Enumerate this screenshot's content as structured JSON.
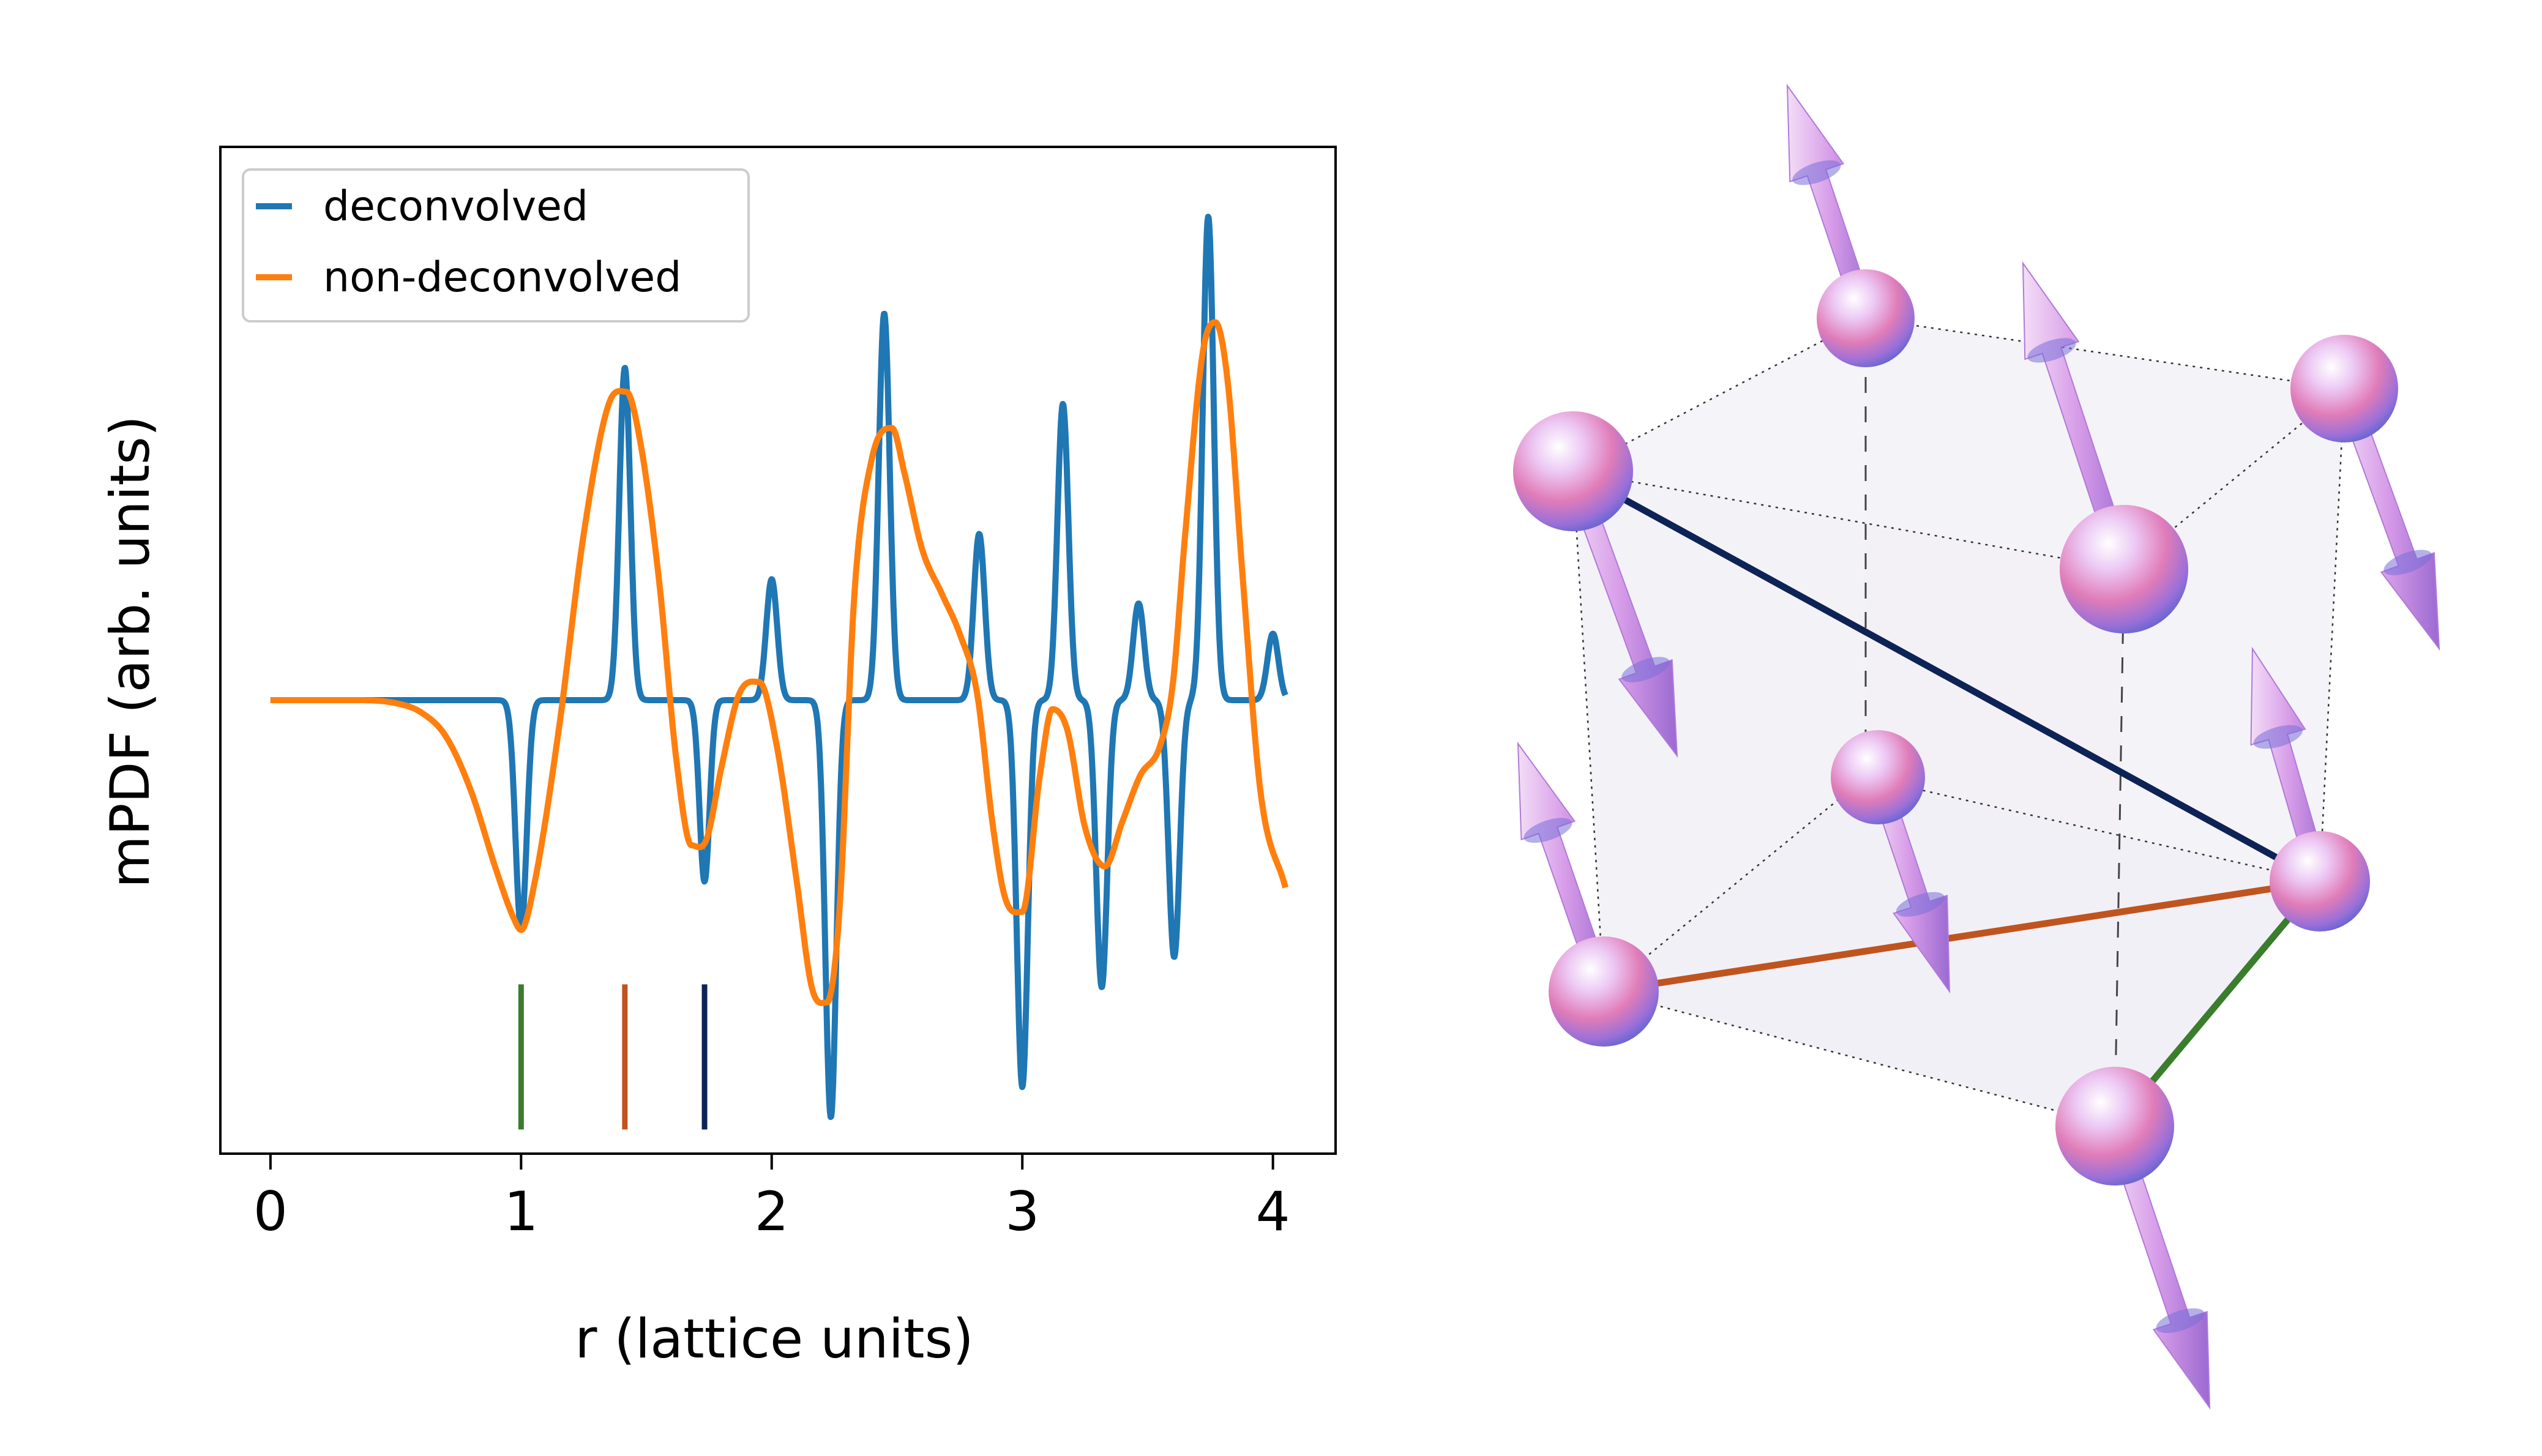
{
  "chart_data": {
    "type": "line",
    "xlabel": "r (lattice units)",
    "ylabel": "mPDF (arb. units)",
    "xlim": [
      -0.2,
      4.25
    ],
    "ylim": [
      -1.5,
      1.83
    ],
    "xticks": [
      0,
      1,
      2,
      3,
      4
    ],
    "xtick_labels": [
      "0",
      "1",
      "2",
      "3",
      "4"
    ],
    "yticks_shown": false,
    "legend_position": "top-left",
    "series": [
      {
        "name": "deconvolved",
        "color": "#1f77b4",
        "peaks": [
          {
            "r": 1.0,
            "a": -0.76,
            "w": 0.022
          },
          {
            "r": 1.414,
            "a": 1.1,
            "w": 0.022
          },
          {
            "r": 1.732,
            "a": -0.6,
            "w": 0.02
          },
          {
            "r": 2.0,
            "a": 0.4,
            "w": 0.022
          },
          {
            "r": 2.236,
            "a": -1.38,
            "w": 0.022
          },
          {
            "r": 2.449,
            "a": 1.28,
            "w": 0.022
          },
          {
            "r": 2.828,
            "a": 0.55,
            "w": 0.022
          },
          {
            "r": 3.0,
            "a": -1.28,
            "w": 0.022
          },
          {
            "r": 3.162,
            "a": 0.98,
            "w": 0.022
          },
          {
            "r": 3.317,
            "a": -0.95,
            "w": 0.022
          },
          {
            "r": 3.464,
            "a": 0.32,
            "w": 0.022
          },
          {
            "r": 3.606,
            "a": -0.85,
            "w": 0.022
          },
          {
            "r": 3.742,
            "a": 1.6,
            "w": 0.022
          },
          {
            "r": 4.0,
            "a": 0.22,
            "w": 0.022
          }
        ]
      },
      {
        "name": "non-deconvolved",
        "color": "#ff7f0e",
        "x": [
          0,
          0.3,
          0.5,
          0.6,
          0.7,
          0.8,
          0.9,
          0.97,
          1.0,
          1.05,
          1.15,
          1.25,
          1.35,
          1.42,
          1.47,
          1.55,
          1.62,
          1.68,
          1.74,
          1.8,
          1.87,
          1.95,
          2.02,
          2.1,
          2.16,
          2.22,
          2.27,
          2.33,
          2.4,
          2.48,
          2.53,
          2.6,
          2.68,
          2.75,
          2.82,
          2.88,
          2.93,
          3.0,
          3.07,
          3.12,
          3.18,
          3.25,
          3.33,
          3.4,
          3.47,
          3.55,
          3.6,
          3.65,
          3.72,
          3.77,
          3.82,
          3.88,
          3.95,
          4.05
        ],
        "y": [
          0,
          0,
          -0.01,
          -0.04,
          -0.12,
          -0.3,
          -0.56,
          -0.72,
          -0.76,
          -0.62,
          -0.1,
          0.55,
          0.98,
          1.02,
          0.88,
          0.4,
          -0.2,
          -0.48,
          -0.46,
          -0.22,
          0.02,
          0.06,
          -0.15,
          -0.6,
          -0.95,
          -1.0,
          -0.7,
          0.35,
          0.8,
          0.9,
          0.75,
          0.5,
          0.35,
          0.22,
          0.02,
          -0.4,
          -0.65,
          -0.7,
          -0.25,
          -0.03,
          -0.1,
          -0.42,
          -0.55,
          -0.4,
          -0.25,
          -0.15,
          0.05,
          0.55,
          1.15,
          1.25,
          1.05,
          0.4,
          -0.3,
          -0.62
        ]
      }
    ],
    "reference_markers": [
      {
        "r": 1.0,
        "color": "#3a7d2c"
      },
      {
        "r": 1.414,
        "color": "#c0541f"
      },
      {
        "r": 1.732,
        "color": "#0d2356"
      }
    ],
    "marker_span": [
      -1.42,
      -0.94
    ]
  },
  "diagram": {
    "sphere_colors": [
      "#ffffff",
      "#d8a8f0",
      "#e06aa8",
      "#6a6ad8"
    ],
    "arrow_color": "#d49be8",
    "bond_colors": {
      "third": "#0d2356",
      "second": "#c0541f",
      "first": "#3a7d2c"
    }
  }
}
